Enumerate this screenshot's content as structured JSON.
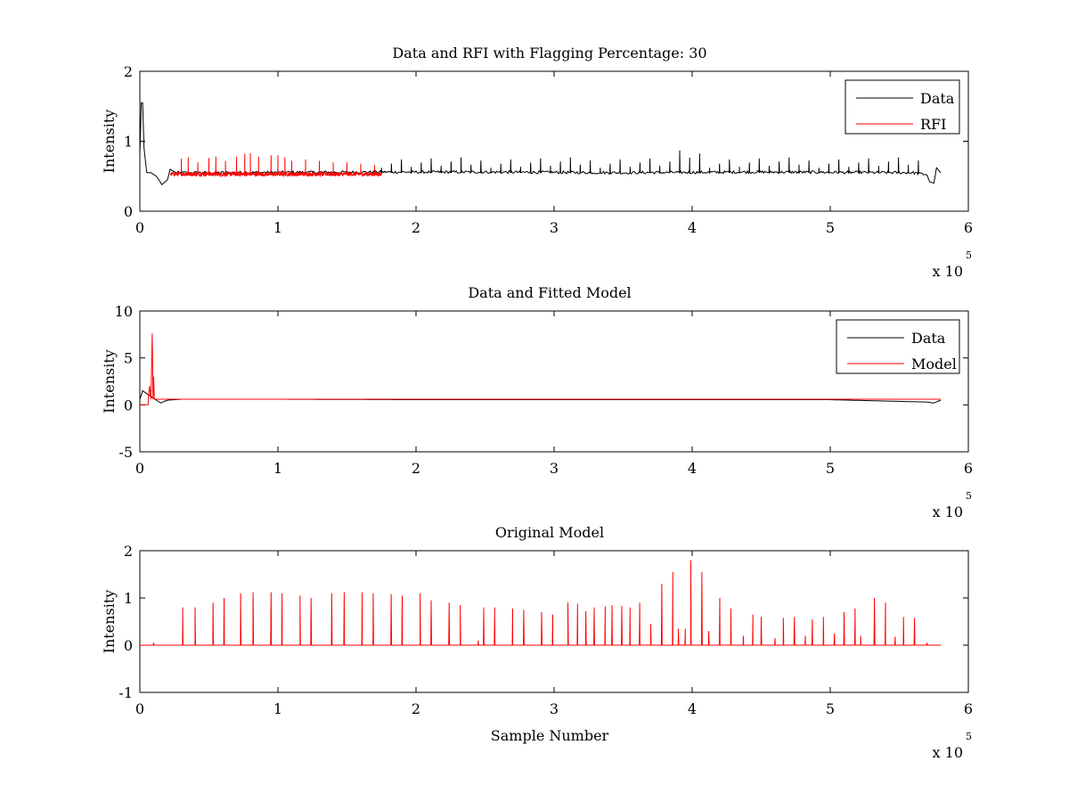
{
  "chart_data": [
    {
      "type": "line",
      "title": "Data and RFI with Flagging Percentage: 30",
      "xlabel": "",
      "ylabel": "Intensity",
      "xlim": [
        0,
        6
      ],
      "ylim": [
        0,
        2
      ],
      "xticks": [
        "0",
        "1",
        "2",
        "3",
        "4",
        "5",
        "6"
      ],
      "yticks": [
        "0",
        "1",
        "2"
      ],
      "x_scale_label": "x 10",
      "x_scale_exponent": "5",
      "legend": {
        "position": "top-right",
        "entries": [
          "Data",
          "RFI"
        ]
      },
      "series": [
        {
          "name": "Data",
          "color": "#000000",
          "baseline": 0.55,
          "x": [
            0,
            0.01,
            0.02,
            0.03,
            0.05,
            0.08,
            0.12,
            0.16,
            0.2,
            0.22,
            0.26,
            1.8,
            2.5,
            3.5,
            4.5,
            5.6,
            5.7,
            5.72,
            5.75,
            5.77,
            5.8
          ],
          "y": [
            0.8,
            1.55,
            1.55,
            0.9,
            0.55,
            0.55,
            0.5,
            0.38,
            0.45,
            0.6,
            0.55,
            0.56,
            0.56,
            0.55,
            0.56,
            0.55,
            0.52,
            0.42,
            0.4,
            0.62,
            0.55
          ]
        },
        {
          "name": "RFI",
          "color": "#ff0000",
          "x_range": [
            0.22,
            1.75
          ],
          "baseline": 0.53,
          "spikes": [
            [
              0.3,
              0.75
            ],
            [
              0.35,
              0.77
            ],
            [
              0.42,
              0.7
            ],
            [
              0.5,
              0.76
            ],
            [
              0.55,
              0.78
            ],
            [
              0.62,
              0.72
            ],
            [
              0.7,
              0.78
            ],
            [
              0.76,
              0.82
            ],
            [
              0.8,
              0.83
            ],
            [
              0.86,
              0.78
            ],
            [
              0.95,
              0.8
            ],
            [
              1.0,
              0.8
            ],
            [
              1.05,
              0.77
            ],
            [
              1.1,
              0.72
            ],
            [
              1.2,
              0.74
            ],
            [
              1.3,
              0.72
            ],
            [
              1.4,
              0.7
            ],
            [
              1.5,
              0.7
            ],
            [
              1.6,
              0.68
            ],
            [
              1.7,
              0.66
            ]
          ]
        }
      ]
    },
    {
      "type": "line",
      "title": "Data and Fitted Model",
      "xlabel": "",
      "ylabel": "Intensity",
      "xlim": [
        0,
        6
      ],
      "ylim": [
        -5,
        10
      ],
      "xticks": [
        "0",
        "1",
        "2",
        "3",
        "4",
        "5",
        "6"
      ],
      "yticks": [
        "-5",
        "0",
        "5",
        "10"
      ],
      "x_scale_label": "x 10",
      "x_scale_exponent": "5",
      "legend": {
        "position": "top-right",
        "entries": [
          "Data",
          "Model"
        ]
      },
      "series": [
        {
          "name": "Data",
          "color": "#000000",
          "x": [
            0,
            0.02,
            0.05,
            0.1,
            0.15,
            0.2,
            0.3,
            1.0,
            2.0,
            3.0,
            4.0,
            5.0,
            5.7,
            5.75,
            5.8
          ],
          "y": [
            0.6,
            1.5,
            1.2,
            0.7,
            0.2,
            0.5,
            0.6,
            0.6,
            0.55,
            0.55,
            0.55,
            0.55,
            0.3,
            0.2,
            0.5
          ]
        },
        {
          "name": "Model",
          "color": "#ff0000",
          "x": [
            0,
            0.06,
            0.06,
            0.07,
            0.08,
            0.09,
            0.095,
            0.1,
            0.105,
            0.11,
            0.12,
            5.8
          ],
          "y": [
            0,
            0,
            0.6,
            2.0,
            0.6,
            7.6,
            0.6,
            3.0,
            0.6,
            0.6,
            0.6,
            0.6
          ]
        }
      ]
    },
    {
      "type": "line",
      "title": "Original Model",
      "xlabel": "Sample Number",
      "ylabel": "Intensity",
      "xlim": [
        0,
        6
      ],
      "ylim": [
        -1,
        2
      ],
      "xticks": [
        "0",
        "1",
        "2",
        "3",
        "4",
        "5",
        "6"
      ],
      "yticks": [
        "-1",
        "0",
        "1",
        "2"
      ],
      "x_scale_label": "x 10",
      "x_scale_exponent": "5",
      "series": [
        {
          "name": "",
          "color": "#ff0000",
          "x_range": [
            0,
            5.8
          ],
          "baseline": 0,
          "spikes": [
            [
              0.1,
              0.05
            ],
            [
              0.31,
              0.8
            ],
            [
              0.4,
              0.8
            ],
            [
              0.53,
              0.9
            ],
            [
              0.61,
              1.0
            ],
            [
              0.73,
              1.1
            ],
            [
              0.82,
              1.12
            ],
            [
              0.95,
              1.12
            ],
            [
              1.03,
              1.1
            ],
            [
              1.16,
              1.05
            ],
            [
              1.24,
              1.0
            ],
            [
              1.39,
              1.1
            ],
            [
              1.48,
              1.12
            ],
            [
              1.61,
              1.12
            ],
            [
              1.69,
              1.1
            ],
            [
              1.82,
              1.08
            ],
            [
              1.9,
              1.05
            ],
            [
              2.03,
              1.1
            ],
            [
              2.11,
              0.95
            ],
            [
              2.24,
              0.9
            ],
            [
              2.32,
              0.85
            ],
            [
              2.45,
              0.1
            ],
            [
              2.49,
              0.8
            ],
            [
              2.57,
              0.8
            ],
            [
              2.7,
              0.78
            ],
            [
              2.78,
              0.75
            ],
            [
              2.91,
              0.7
            ],
            [
              2.99,
              0.65
            ],
            [
              3.1,
              0.9
            ],
            [
              3.17,
              0.88
            ],
            [
              3.23,
              0.72
            ],
            [
              3.29,
              0.8
            ],
            [
              3.37,
              0.82
            ],
            [
              3.42,
              0.85
            ],
            [
              3.49,
              0.83
            ],
            [
              3.55,
              0.8
            ],
            [
              3.62,
              0.9
            ],
            [
              3.7,
              0.45
            ],
            [
              3.78,
              1.3
            ],
            [
              3.86,
              1.55
            ],
            [
              3.9,
              0.35
            ],
            [
              3.95,
              0.35
            ],
            [
              3.99,
              1.8
            ],
            [
              4.07,
              1.55
            ],
            [
              4.12,
              0.3
            ],
            [
              4.2,
              1.0
            ],
            [
              4.28,
              0.78
            ],
            [
              4.37,
              0.2
            ],
            [
              4.44,
              0.65
            ],
            [
              4.5,
              0.6
            ],
            [
              4.6,
              0.15
            ],
            [
              4.66,
              0.58
            ],
            [
              4.74,
              0.6
            ],
            [
              4.82,
              0.2
            ],
            [
              4.87,
              0.55
            ],
            [
              4.95,
              0.6
            ],
            [
              5.03,
              0.25
            ],
            [
              5.1,
              0.7
            ],
            [
              5.18,
              0.78
            ],
            [
              5.22,
              0.2
            ],
            [
              5.32,
              1.0
            ],
            [
              5.4,
              0.9
            ],
            [
              5.47,
              0.18
            ],
            [
              5.53,
              0.6
            ],
            [
              5.61,
              0.58
            ],
            [
              5.7,
              0.05
            ]
          ]
        }
      ]
    }
  ]
}
